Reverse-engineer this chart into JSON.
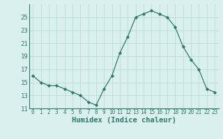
{
  "x": [
    0,
    1,
    2,
    3,
    4,
    5,
    6,
    7,
    8,
    9,
    10,
    11,
    12,
    13,
    14,
    15,
    16,
    17,
    18,
    19,
    20,
    21,
    22,
    23
  ],
  "y": [
    16,
    15,
    14.5,
    14.5,
    14,
    13.5,
    13,
    12,
    11.5,
    14,
    16,
    19.5,
    22,
    25,
    25.5,
    26,
    25.5,
    25,
    23.5,
    20.5,
    18.5,
    17,
    14,
    13.5
  ],
  "xlabel": "Humidex (Indice chaleur)",
  "xlim": [
    -0.5,
    23.5
  ],
  "ylim": [
    11,
    27
  ],
  "yticks": [
    11,
    13,
    15,
    17,
    19,
    21,
    23,
    25
  ],
  "xticks": [
    0,
    1,
    2,
    3,
    4,
    5,
    6,
    7,
    8,
    9,
    10,
    11,
    12,
    13,
    14,
    15,
    16,
    17,
    18,
    19,
    20,
    21,
    22,
    23
  ],
  "line_color": "#2d7a6a",
  "marker": "D",
  "marker_size": 2.2,
  "bg_color": "#daf0ee",
  "grid_color": "#b8dcd8",
  "xlabel_fontsize": 7.5,
  "tick_fontsize": 5.5,
  "ytick_fontsize": 6.5
}
